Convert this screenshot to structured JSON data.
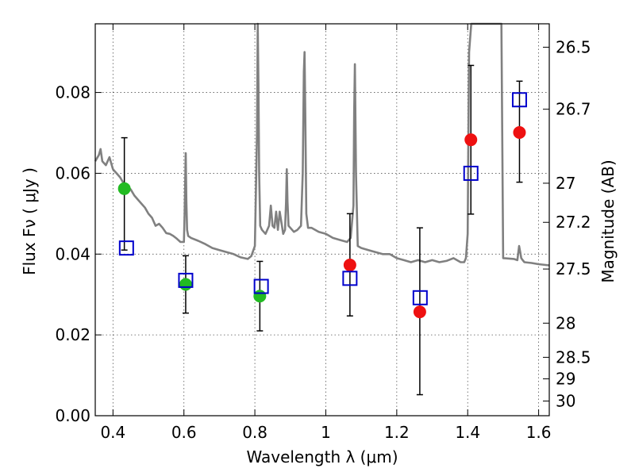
{
  "chart_data": {
    "type": "scatter",
    "xlabel": "Wavelength  λ (μm)",
    "ylabel": "Flux  Fν  ( μJy )",
    "y2label": "Magnitude (AB)",
    "xlim": [
      0.35,
      1.63
    ],
    "ylim": [
      0.0,
      0.097
    ],
    "grid": true,
    "x_ticks": [
      0.4,
      0.6,
      0.8,
      1.0,
      1.2,
      1.4,
      1.6
    ],
    "x_tick_labels": [
      "0.4",
      "0.6",
      "0.8",
      "1",
      "1.2",
      "1.4",
      "1.6"
    ],
    "y_ticks": [
      0.0,
      0.02,
      0.04,
      0.06,
      0.08
    ],
    "y_tick_labels": [
      "0.00",
      "0.02",
      "0.04",
      "0.06",
      "0.08"
    ],
    "mag_ticks": [
      26.5,
      26.7,
      27,
      27.2,
      27.5,
      28,
      28.5,
      29,
      30
    ],
    "mag_tick_labels": [
      "26.5",
      "26.7",
      "27",
      "27.2",
      "27.5",
      "28",
      "28.5",
      "29",
      "30"
    ],
    "colors": {
      "sed": "#808080",
      "model": "#0000cc",
      "green": "#22bb22",
      "red": "#ee1111",
      "errorbar": "#000000",
      "grid": "#555555"
    },
    "sed_model": {
      "name": "SED template",
      "x": [
        0.35,
        0.36,
        0.365,
        0.37,
        0.38,
        0.39,
        0.4,
        0.41,
        0.42,
        0.43,
        0.44,
        0.45,
        0.46,
        0.47,
        0.48,
        0.49,
        0.5,
        0.51,
        0.52,
        0.53,
        0.54,
        0.55,
        0.56,
        0.57,
        0.58,
        0.59,
        0.6,
        0.602,
        0.605,
        0.607,
        0.609,
        0.612,
        0.62,
        0.64,
        0.66,
        0.68,
        0.7,
        0.72,
        0.74,
        0.76,
        0.78,
        0.79,
        0.8,
        0.806,
        0.808,
        0.81,
        0.812,
        0.815,
        0.82,
        0.83,
        0.84,
        0.845,
        0.85,
        0.855,
        0.86,
        0.865,
        0.87,
        0.88,
        0.885,
        0.888,
        0.89,
        0.892,
        0.895,
        0.9,
        0.91,
        0.92,
        0.93,
        0.935,
        0.938,
        0.94,
        0.942,
        0.945,
        0.95,
        0.96,
        0.98,
        1.0,
        1.02,
        1.04,
        1.06,
        1.07,
        1.078,
        1.08,
        1.082,
        1.085,
        1.09,
        1.1,
        1.12,
        1.14,
        1.16,
        1.18,
        1.2,
        1.22,
        1.24,
        1.26,
        1.28,
        1.3,
        1.32,
        1.34,
        1.36,
        1.38,
        1.39,
        1.395,
        1.4,
        1.402,
        1.404,
        1.41,
        1.42,
        1.45,
        1.46,
        1.48,
        1.49,
        1.495,
        1.5,
        1.53,
        1.54,
        1.545,
        1.548,
        1.551,
        1.555,
        1.56,
        1.58,
        1.6,
        1.63
      ],
      "y": [
        0.063,
        0.0645,
        0.066,
        0.063,
        0.062,
        0.064,
        0.061,
        0.06,
        0.059,
        0.0575,
        0.057,
        0.056,
        0.0545,
        0.0535,
        0.0525,
        0.0515,
        0.05,
        0.049,
        0.047,
        0.0475,
        0.0465,
        0.0452,
        0.045,
        0.0445,
        0.0438,
        0.043,
        0.043,
        0.05,
        0.065,
        0.053,
        0.046,
        0.0445,
        0.044,
        0.0433,
        0.0425,
        0.0415,
        0.041,
        0.0405,
        0.04,
        0.0392,
        0.0388,
        0.0395,
        0.042,
        0.07,
        0.098,
        0.082,
        0.06,
        0.047,
        0.046,
        0.045,
        0.047,
        0.052,
        0.047,
        0.0465,
        0.0505,
        0.046,
        0.0505,
        0.045,
        0.046,
        0.053,
        0.061,
        0.053,
        0.047,
        0.0465,
        0.0455,
        0.046,
        0.047,
        0.06,
        0.085,
        0.09,
        0.075,
        0.05,
        0.0465,
        0.0465,
        0.0455,
        0.045,
        0.044,
        0.0435,
        0.043,
        0.044,
        0.052,
        0.075,
        0.087,
        0.06,
        0.042,
        0.0415,
        0.041,
        0.0405,
        0.04,
        0.04,
        0.039,
        0.0385,
        0.038,
        0.0385,
        0.038,
        0.0385,
        0.038,
        0.0383,
        0.039,
        0.038,
        0.038,
        0.039,
        0.045,
        0.07,
        0.09,
        0.098,
        0.098,
        0.098,
        0.098,
        0.098,
        0.098,
        0.098,
        0.039,
        0.0388,
        0.0385,
        0.042,
        0.0405,
        0.039,
        0.0385,
        0.038,
        0.0378,
        0.0375,
        0.0372
      ]
    },
    "model_photometry": {
      "name": "model photometry (open squares)",
      "x": [
        0.438,
        0.605,
        0.818,
        1.068,
        1.266,
        1.409,
        1.546
      ],
      "y": [
        0.0415,
        0.0335,
        0.032,
        0.034,
        0.0292,
        0.06,
        0.0782
      ]
    },
    "observed_green": {
      "name": "observed (green)",
      "x": [
        0.432,
        0.605,
        0.814
      ],
      "y": [
        0.0562,
        0.0325,
        0.0296
      ],
      "err_low": [
        0.041,
        0.0254,
        0.021
      ],
      "err_high": [
        0.0688,
        0.0396,
        0.0382
      ]
    },
    "observed_red": {
      "name": "observed (red)",
      "x": [
        1.068,
        1.265,
        1.409,
        1.546
      ],
      "y": [
        0.0373,
        0.0257,
        0.0683,
        0.0701
      ],
      "err_low": [
        0.0247,
        0.0052,
        0.0499,
        0.0578
      ],
      "err_high": [
        0.05,
        0.0465,
        0.0867,
        0.0828
      ]
    }
  }
}
